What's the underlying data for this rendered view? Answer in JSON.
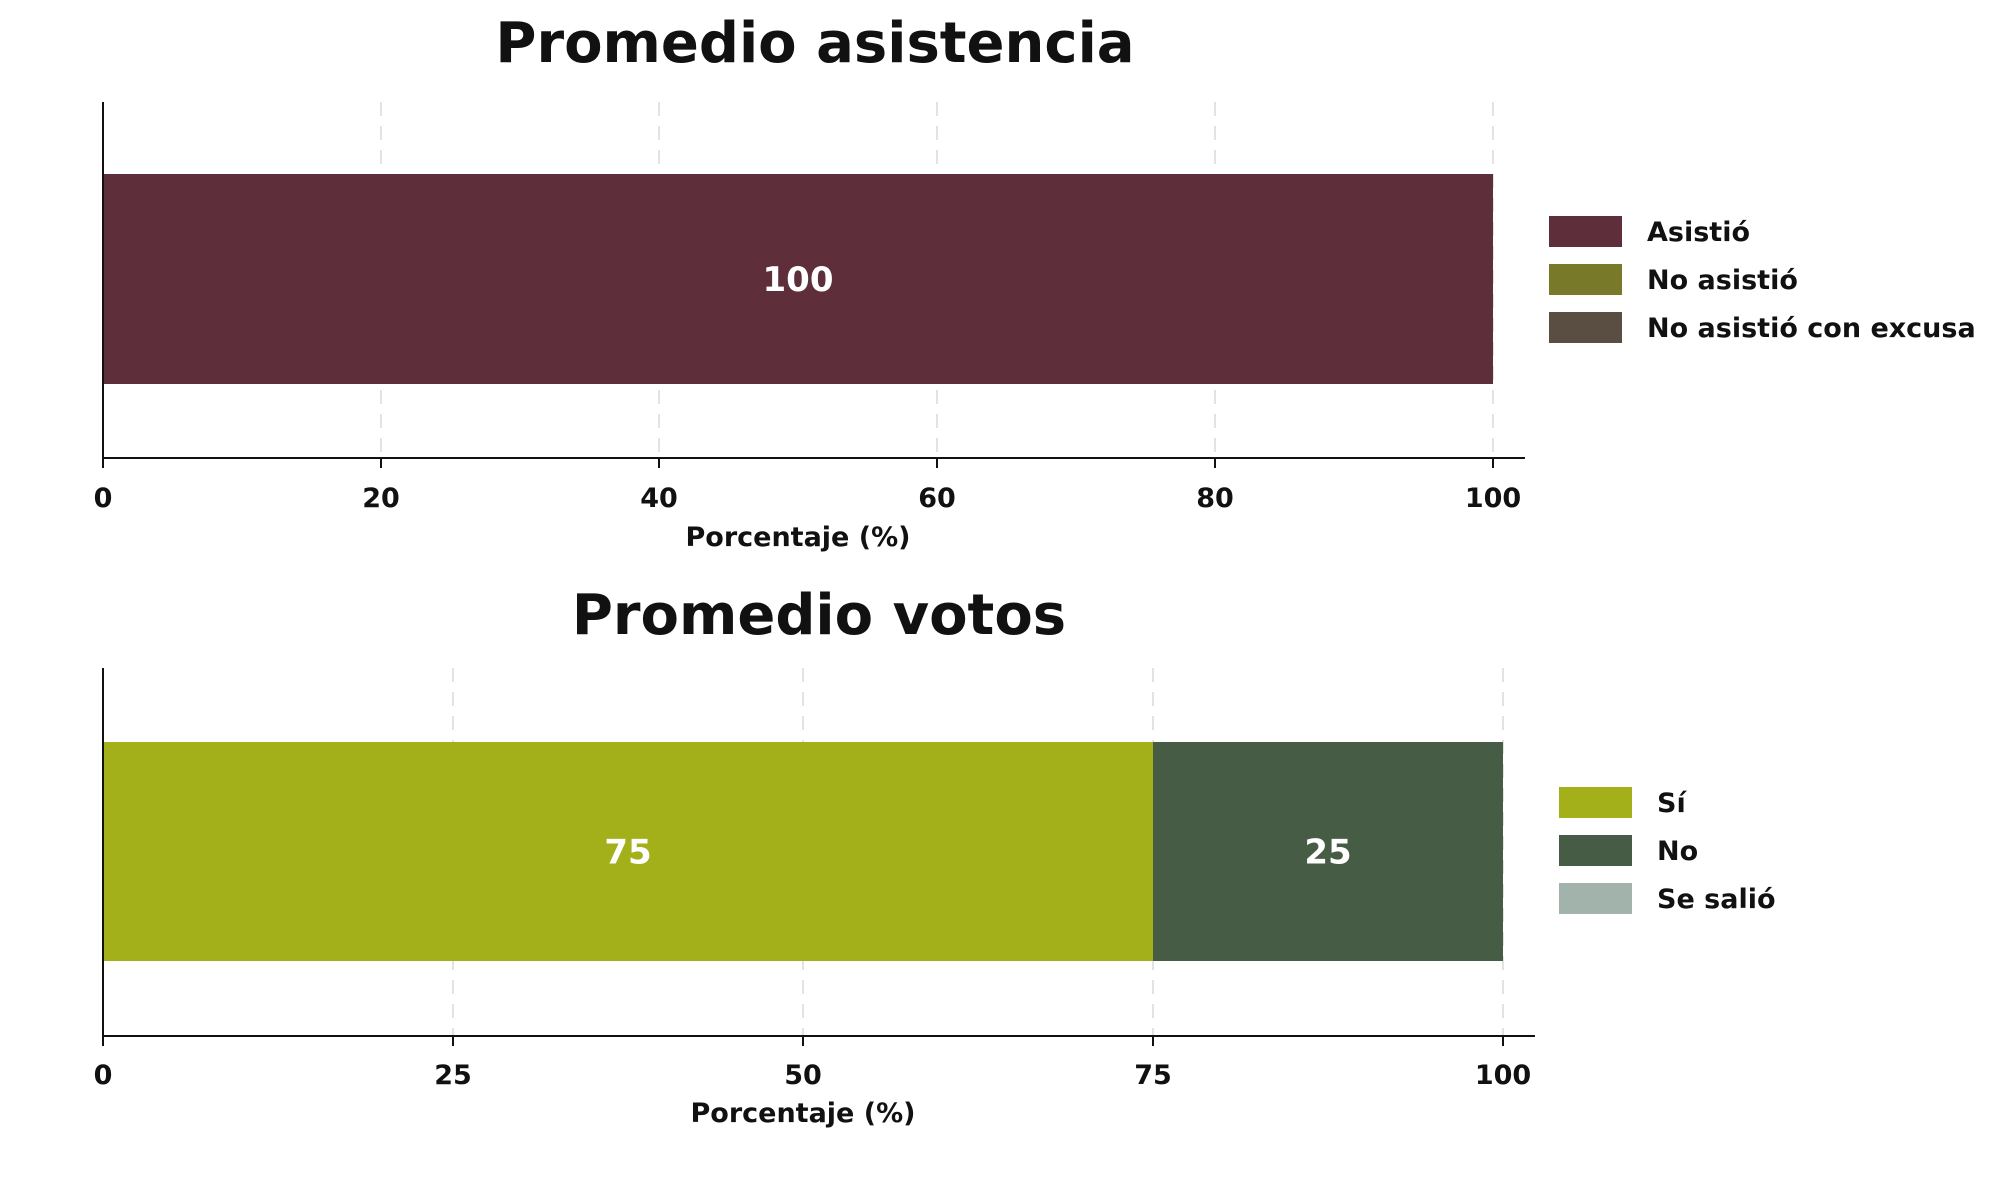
{
  "chart_data": [
    {
      "type": "bar",
      "orientation": "horizontal",
      "stacked": true,
      "title": "Promedio asistencia",
      "xlabel": "Porcentaje (%)",
      "ylabel": "",
      "xlim": [
        0,
        100
      ],
      "xticks": [
        0,
        20,
        40,
        60,
        80,
        100
      ],
      "grid": "vertical dashed",
      "legend_position": "right",
      "series": [
        {
          "name": "Asistió",
          "value": 100,
          "color": "#5e2e3b",
          "label": "100"
        },
        {
          "name": "No asistió",
          "value": 0,
          "color": "#787a2a",
          "label": ""
        },
        {
          "name": "No asistió con excusa",
          "value": 0,
          "color": "#5a4e43",
          "label": ""
        }
      ]
    },
    {
      "type": "bar",
      "orientation": "horizontal",
      "stacked": true,
      "title": "Promedio votos",
      "xlabel": "Porcentaje (%)",
      "ylabel": "",
      "xlim": [
        0,
        100
      ],
      "xticks": [
        0,
        25,
        50,
        75,
        100
      ],
      "grid": "vertical dashed",
      "legend_position": "right",
      "series": [
        {
          "name": "Sí",
          "value": 75,
          "color": "#a3b019",
          "label": "75"
        },
        {
          "name": "No",
          "value": 25,
          "color": "#465c44",
          "label": "25"
        },
        {
          "name": "Se salió",
          "value": 0,
          "color": "#a1b3ab",
          "label": ""
        }
      ]
    }
  ]
}
